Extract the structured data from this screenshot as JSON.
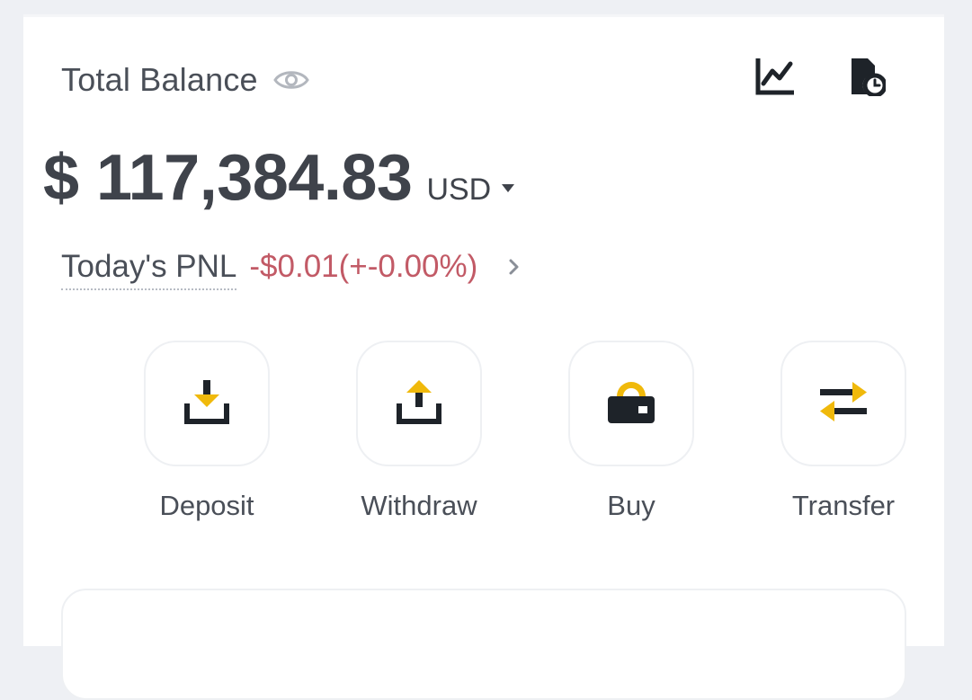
{
  "header": {
    "title": "Total Balance",
    "eye_icon": "eye-icon",
    "chart_icon": "line-chart-icon",
    "history_icon": "history-icon"
  },
  "balance": {
    "value": "$ 117,384.83",
    "currency": "USD",
    "caret_icon": "caret-down-icon"
  },
  "pnl": {
    "label": "Today's PNL",
    "value": "-$0.01(+-0.00%)",
    "chevron_icon": "chevron-right-icon"
  },
  "actions": [
    {
      "label": "Deposit",
      "icon": "deposit-icon"
    },
    {
      "label": "Withdraw",
      "icon": "withdraw-icon"
    },
    {
      "label": "Buy",
      "icon": "wallet-icon"
    },
    {
      "label": "Transfer",
      "icon": "transfer-icon"
    }
  ],
  "colors": {
    "accent_yellow": "#f0b90b",
    "dark_icon": "#1e2329",
    "negative": "#c25a66",
    "text_muted": "#4a4f58"
  }
}
